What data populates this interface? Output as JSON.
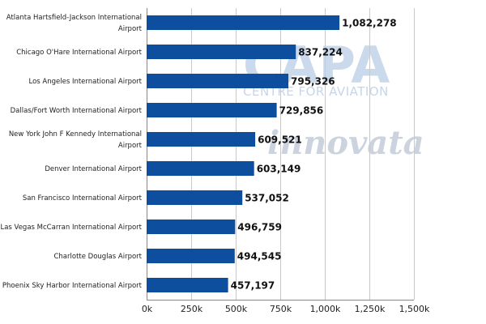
{
  "watermarks": {
    "capa": "CAPA",
    "capa_sub": "CENTRE FOR AVIATION",
    "innovata": "innovata"
  },
  "colors": {
    "bar": "#0d4f9e"
  },
  "chart_data": {
    "type": "bar",
    "orientation": "horizontal",
    "categories": [
      [
        "Atlanta Hartsfield-Jackson International",
        "Airport"
      ],
      [
        "Chicago O'Hare International Airport"
      ],
      [
        "Los Angeles International Airport"
      ],
      [
        "Dallas/Fort Worth International Airport"
      ],
      [
        "New York John F Kennedy International",
        "Airport"
      ],
      [
        "Denver International Airport"
      ],
      [
        "San Francisco International Airport"
      ],
      [
        "Las Vegas McCarran International Airport"
      ],
      [
        "Charlotte Douglas Airport"
      ],
      [
        "Phoenix Sky Harbor International Airport"
      ]
    ],
    "values": [
      1082278,
      837224,
      795326,
      729856,
      609521,
      603149,
      537052,
      496759,
      494545,
      457197
    ],
    "value_labels": [
      "1,082,278",
      "837,224",
      "795,326",
      "729,856",
      "609,521",
      "603,149",
      "537,052",
      "496,759",
      "494,545",
      "457,197"
    ],
    "x_ticks": [
      0,
      250000,
      500000,
      750000,
      1000000,
      1250000,
      1500000
    ],
    "x_tick_labels": [
      "0k",
      "250k",
      "500k",
      "750k",
      "1,000k",
      "1,250k",
      "1,500k"
    ],
    "xlim": [
      0,
      1500000
    ],
    "grid": true,
    "title": "",
    "xlabel": "",
    "ylabel": ""
  }
}
